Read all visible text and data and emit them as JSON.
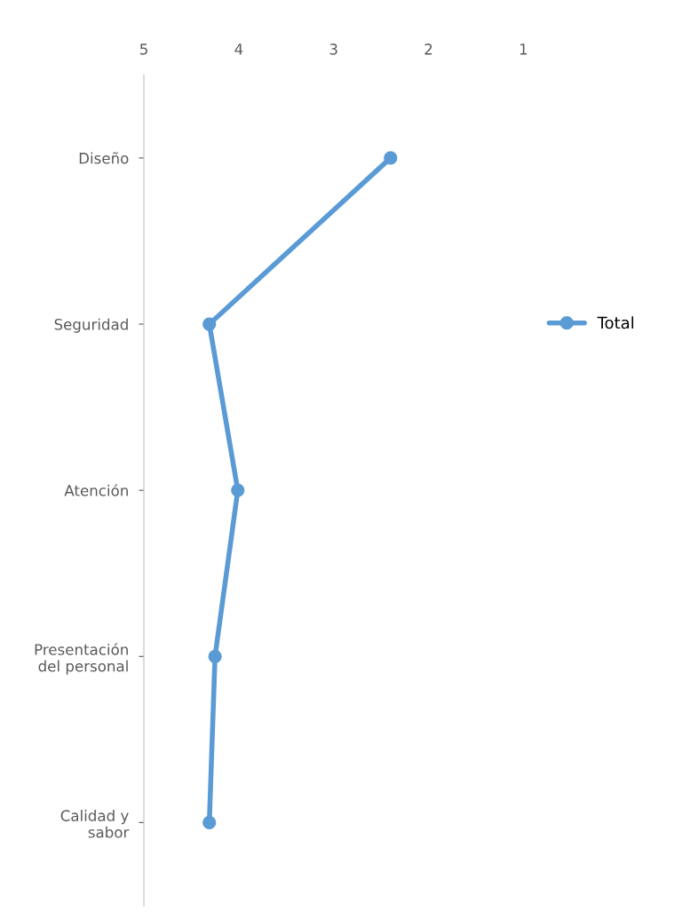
{
  "chart_data": {
    "type": "line",
    "orientation": "horizontal",
    "categories": [
      "Diseño",
      "Seguridad",
      "Atención",
      "Presentación\ndel personal",
      "Calidad y\nsabor"
    ],
    "series": [
      {
        "name": "Total",
        "color": "#5b9bd5",
        "values": [
          2.4,
          4.31,
          4.01,
          4.25,
          4.31
        ]
      }
    ],
    "xlim": [
      5,
      1
    ],
    "xticks": [
      5,
      4,
      3,
      2,
      1
    ],
    "grid": false,
    "legend": "right",
    "marker": "circle",
    "line_style": "solid"
  }
}
